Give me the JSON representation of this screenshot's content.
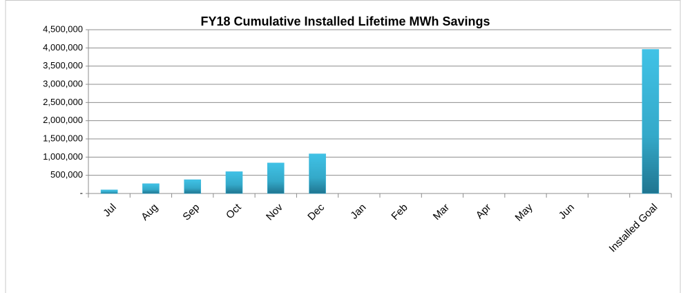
{
  "chart_data": {
    "type": "bar",
    "title": "FY18 Cumulative Installed Lifetime MWh Savings",
    "categories": [
      "Jul",
      "Aug",
      "Sep",
      "Oct",
      "Nov",
      "Dec",
      "Jan",
      "Feb",
      "Mar",
      "Apr",
      "May",
      "Jun",
      null,
      "Installed Goal"
    ],
    "values": [
      100000,
      270000,
      380000,
      600000,
      840000,
      1090000,
      null,
      null,
      null,
      null,
      null,
      null,
      null,
      3960000
    ],
    "color": "#3bb8dc",
    "ylim": [
      0,
      4500000
    ],
    "yticks": [
      {
        "value": 0,
        "label": "-"
      },
      {
        "value": 500000,
        "label": "500,000"
      },
      {
        "value": 1000000,
        "label": "1,000,000"
      },
      {
        "value": 1500000,
        "label": "1,500,000"
      },
      {
        "value": 2000000,
        "label": "2,000,000"
      },
      {
        "value": 2500000,
        "label": "2,500,000"
      },
      {
        "value": 3000000,
        "label": "3,000,000"
      },
      {
        "value": 3500000,
        "label": "3,500,000"
      },
      {
        "value": 4000000,
        "label": "4,000,000"
      },
      {
        "value": 4500000,
        "label": "4,500,000"
      }
    ],
    "grid": true
  }
}
